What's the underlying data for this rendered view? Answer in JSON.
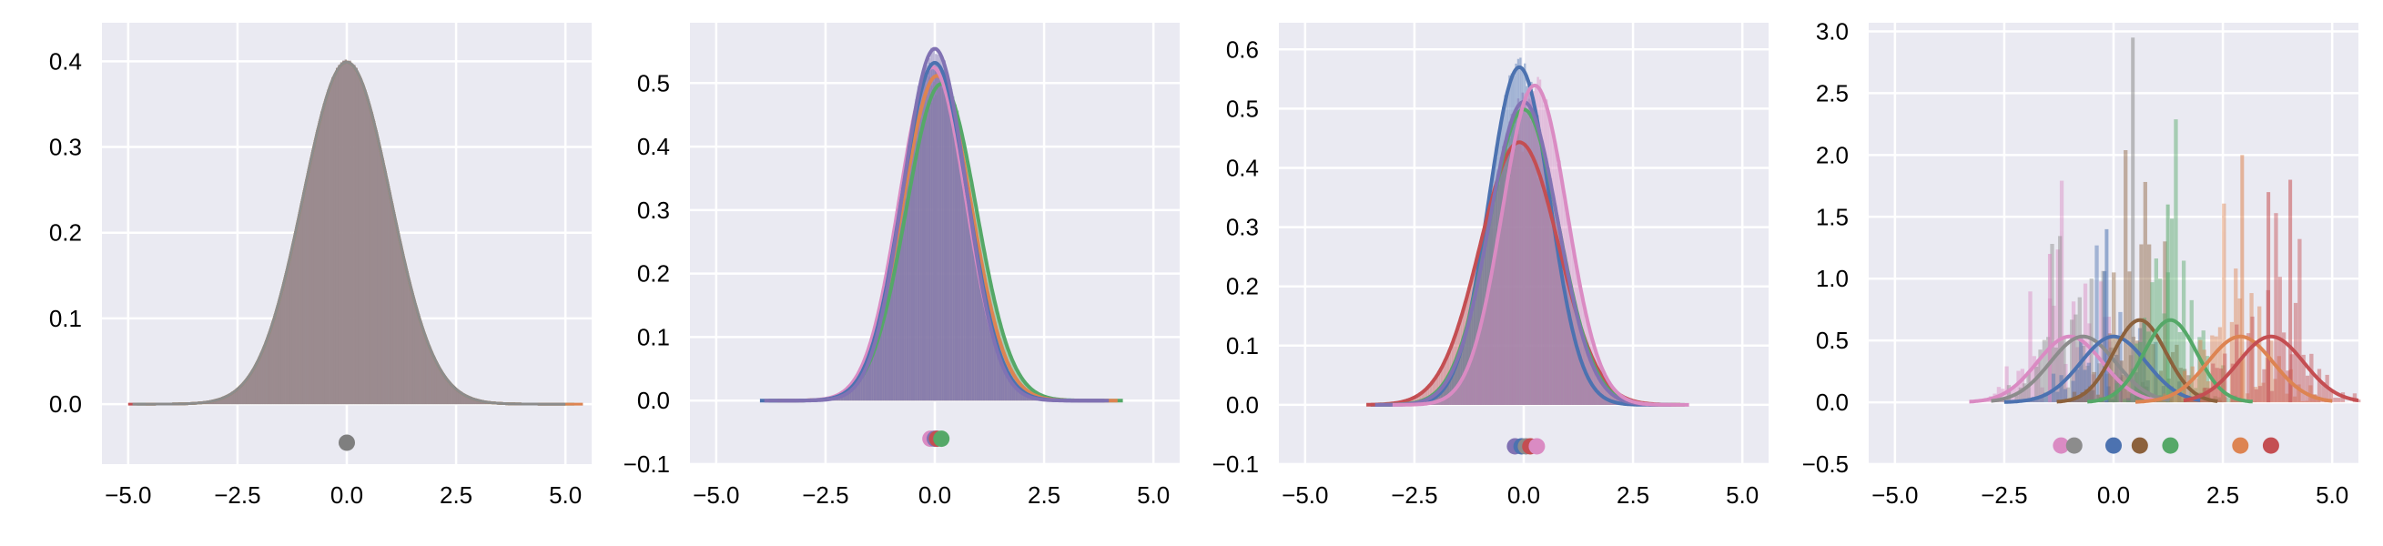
{
  "chart_data": [
    {
      "type": "area",
      "xticks": [
        "−5.0",
        "−2.5",
        "0.0",
        "2.5",
        "5.0"
      ],
      "yticks": [
        "0.0",
        "0.1",
        "0.2",
        "0.3",
        "0.4"
      ],
      "xlim": [
        -5.6,
        5.6
      ],
      "ylim": [
        -0.07,
        0.445
      ],
      "grid": true,
      "series": [
        {
          "color": "#c44e52",
          "mean": 0.0,
          "std": 1.0,
          "range": [
            -5.0,
            5.0
          ]
        },
        {
          "color": "#55a868",
          "mean": 0.0,
          "std": 1.0,
          "range": [
            -4.8,
            5.2
          ]
        },
        {
          "color": "#dd8452",
          "mean": 0.0,
          "std": 1.0,
          "range": [
            -4.6,
            5.4
          ]
        },
        {
          "color": "#8c8c8c",
          "mean": 0.0,
          "std": 1.0,
          "range": [
            -4.9,
            5.0
          ]
        }
      ],
      "means": [
        {
          "x": 0.0,
          "y": -0.045,
          "color": "#7f7f7f"
        }
      ],
      "fill_color": "#9b8b8f",
      "noise": 0.02
    },
    {
      "type": "area",
      "xticks": [
        "−5.0",
        "−2.5",
        "0.0",
        "2.5",
        "5.0"
      ],
      "yticks": [
        "−0.1",
        "0.0",
        "0.1",
        "0.2",
        "0.3",
        "0.4",
        "0.5"
      ],
      "xlim": [
        -5.6,
        5.6
      ],
      "ylim": [
        -0.1,
        0.595
      ],
      "grid": true,
      "series": [
        {
          "color": "#55a868",
          "mean": 0.15,
          "std": 0.8,
          "range": [
            -3.8,
            4.3
          ]
        },
        {
          "color": "#dd8452",
          "mean": 0.05,
          "std": 0.78,
          "range": [
            -3.6,
            4.2
          ]
        },
        {
          "color": "#da8bc3",
          "mean": -0.05,
          "std": 0.76,
          "range": [
            -3.5,
            3.9
          ]
        },
        {
          "color": "#4c72b0",
          "mean": 0.0,
          "std": 0.75,
          "range": [
            -4.0,
            3.9
          ]
        },
        {
          "color": "#8172b3",
          "mean": 0.0,
          "std": 0.72,
          "range": [
            -3.9,
            4.0
          ]
        }
      ],
      "means": [
        {
          "x": -0.1,
          "y": -0.06,
          "color": "#da8bc3"
        },
        {
          "x": 0.0,
          "y": -0.06,
          "color": "#8172b3"
        },
        {
          "x": 0.05,
          "y": -0.06,
          "color": "#c44e52"
        },
        {
          "x": 0.15,
          "y": -0.06,
          "color": "#55a868"
        }
      ],
      "fill_color": "#9b8b8f",
      "noise": 0.05
    },
    {
      "type": "area",
      "xticks": [
        "−5.0",
        "−2.5",
        "0.0",
        "2.5",
        "5.0"
      ],
      "yticks": [
        "−0.1",
        "0.0",
        "0.1",
        "0.2",
        "0.3",
        "0.4",
        "0.5",
        "0.6"
      ],
      "xlim": [
        -5.6,
        5.6
      ],
      "ylim": [
        -0.1,
        0.645
      ],
      "grid": true,
      "series": [
        {
          "color": "#4c72b0",
          "mean": -0.1,
          "std": 0.7,
          "range": [
            -3.5,
            3.5
          ]
        },
        {
          "color": "#c44e52",
          "mean": -0.1,
          "std": 0.9,
          "range": [
            -3.6,
            3.6
          ]
        },
        {
          "color": "#55a868",
          "mean": 0.0,
          "std": 0.8,
          "range": [
            -3.3,
            3.7
          ]
        },
        {
          "color": "#8172b3",
          "mean": 0.0,
          "std": 0.78,
          "range": [
            -3.4,
            3.4
          ]
        },
        {
          "color": "#da8bc3",
          "mean": 0.25,
          "std": 0.74,
          "range": [
            -3.0,
            3.8
          ]
        }
      ],
      "means": [
        {
          "x": -0.2,
          "y": -0.07,
          "color": "#8172b3"
        },
        {
          "x": -0.05,
          "y": -0.07,
          "color": "#4c72b0"
        },
        {
          "x": 0.05,
          "y": -0.07,
          "color": "#8c8c8c"
        },
        {
          "x": 0.15,
          "y": -0.07,
          "color": "#c44e52"
        },
        {
          "x": 0.3,
          "y": -0.07,
          "color": "#da8bc3"
        }
      ],
      "fill_color": "#9b8b8f",
      "noise": 0.07
    },
    {
      "type": "area",
      "xticks": [
        "−5.0",
        "−2.5",
        "0.0",
        "2.5",
        "5.0"
      ],
      "yticks": [
        "−0.5",
        "0.0",
        "0.5",
        "1.0",
        "1.5",
        "2.0",
        "2.5",
        "3.0"
      ],
      "xlim": [
        -5.6,
        5.6
      ],
      "ylim": [
        -0.5,
        3.07
      ],
      "grid": true,
      "series": [
        {
          "color": "#da8bc3",
          "mean": -1.0,
          "std": 0.75,
          "range": [
            -3.3,
            1.0
          ]
        },
        {
          "color": "#8c8c8c",
          "mean": -0.7,
          "std": 0.75,
          "range": [
            -2.8,
            1.3
          ]
        },
        {
          "color": "#4c72b0",
          "mean": 0.0,
          "std": 0.75,
          "range": [
            -2.5,
            2.0
          ]
        },
        {
          "color": "#8c613c",
          "mean": 0.6,
          "std": 0.6,
          "range": [
            -1.3,
            2.4
          ]
        },
        {
          "color": "#55a868",
          "mean": 1.3,
          "std": 0.6,
          "range": [
            -0.6,
            3.2
          ]
        },
        {
          "color": "#dd8452",
          "mean": 2.9,
          "std": 0.75,
          "range": [
            0.5,
            5.0
          ]
        },
        {
          "color": "#c44e52",
          "mean": 3.6,
          "std": 0.75,
          "range": [
            1.6,
            5.6
          ]
        }
      ],
      "means": [
        {
          "x": -1.2,
          "y": -0.35,
          "color": "#da8bc3"
        },
        {
          "x": -0.9,
          "y": -0.35,
          "color": "#8c8c8c"
        },
        {
          "x": 0.0,
          "y": -0.35,
          "color": "#4c72b0"
        },
        {
          "x": 0.6,
          "y": -0.35,
          "color": "#8c613c"
        },
        {
          "x": 1.3,
          "y": -0.35,
          "color": "#55a868"
        },
        {
          "x": 2.9,
          "y": -0.35,
          "color": "#dd8452"
        },
        {
          "x": 3.6,
          "y": -0.35,
          "color": "#c44e52"
        }
      ],
      "fill_color": "#a08888",
      "noise": 0.9,
      "spikes": [
        {
          "x": 0.4,
          "y": 2.95,
          "color": "#8c8c8c"
        },
        {
          "x": 2.9,
          "y": 2.0,
          "color": "#dd8452"
        },
        {
          "x": 4.0,
          "y": 1.8,
          "color": "#c44e52"
        },
        {
          "x": 3.5,
          "y": 1.7,
          "color": "#c44e52"
        },
        {
          "x": 1.2,
          "y": 1.6,
          "color": "#55a868"
        },
        {
          "x": -0.2,
          "y": 1.4,
          "color": "#4c72b0"
        },
        {
          "x": -1.5,
          "y": 1.2,
          "color": "#da8bc3"
        }
      ]
    }
  ]
}
